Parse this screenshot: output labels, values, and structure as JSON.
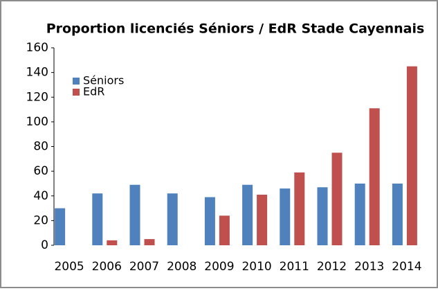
{
  "chart_data": {
    "type": "bar",
    "title": "Proportion licenciés Séniors / EdR Stade Cayennais",
    "categories": [
      "2005",
      "2006",
      "2007",
      "2008",
      "2009",
      "2010",
      "2011",
      "2012",
      "2013",
      "2014"
    ],
    "series": [
      {
        "name": "Séniors",
        "color": "#4f81bd",
        "values": [
          30,
          42,
          49,
          42,
          39,
          49,
          46,
          47,
          50,
          50
        ]
      },
      {
        "name": "EdR",
        "color": "#c0504d",
        "values": [
          null,
          4,
          5,
          null,
          24,
          41,
          59,
          75,
          111,
          145
        ]
      }
    ],
    "ylim": [
      0,
      160
    ],
    "yticks": [
      0,
      20,
      40,
      60,
      80,
      100,
      120,
      140,
      160
    ],
    "legend": "upper left"
  }
}
